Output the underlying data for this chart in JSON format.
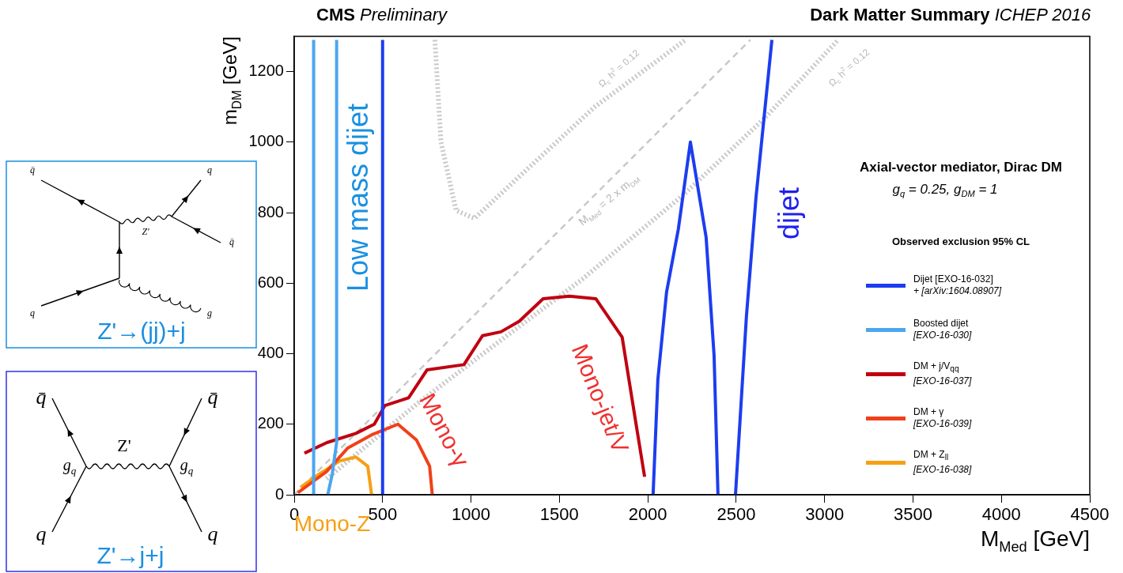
{
  "chart_data": {
    "type": "line",
    "title": "CMS Preliminary",
    "subtitle": "Dark Matter Summary ICHEP 2016",
    "xlabel": "M$_{Med}$ [GeV]",
    "ylabel": "m$_{DM}$ [GeV]",
    "legend_title": "Observed exclusion 95% CL",
    "legend": "right",
    "grid": false,
    "xlim": [
      0,
      4500
    ],
    "ylim": [
      0,
      1300
    ],
    "xticks": [
      0,
      500,
      1000,
      1500,
      2000,
      2500,
      3000,
      3500,
      4000,
      4500
    ],
    "yticks": [
      0,
      200,
      400,
      600,
      800,
      1000,
      1200
    ],
    "series": [
      {
        "name": "Dijet [EXO-16-032]\n+ [arXiv:1604.08907]",
        "color": "#1c3df0",
        "x": [
          500,
          500,
          null,
          2030,
          2057,
          2106,
          2173,
          2241,
          2330,
          2375,
          2397,
          null,
          2496,
          2558,
          2612,
          2702
        ],
        "values": [
          0,
          1290,
          null,
          0,
          327,
          574,
          754,
          1000,
          730,
          395,
          0,
          null,
          0,
          507,
          843,
          1290
        ]
      },
      {
        "name": "Boosted dijet\n[EXO-16-030]",
        "color": "#4ba6f0",
        "x": [
          110,
          110,
          null,
          190,
          215,
          240,
          240
        ],
        "values": [
          0,
          1290,
          null,
          0,
          58,
          148,
          1290
        ]
      },
      {
        "name": "DM + j/V$_{qq}$\n[EXO-16-037]",
        "color": "#c00010",
        "x": [
          58,
          185,
          349,
          453,
          513,
          647,
          751,
          960,
          1065,
          1169,
          1273,
          1408,
          1557,
          1706,
          1855,
          1929,
          1982
        ],
        "values": [
          118,
          148,
          174,
          200,
          253,
          275,
          354,
          369,
          451,
          462,
          492,
          556,
          563,
          556,
          447,
          215,
          51
        ]
      },
      {
        "name": "DM + γ\n[EXO-16-039]",
        "color": "#f0401a",
        "x": [
          21,
          81,
          183,
          304,
          438,
          587,
          692,
          766,
          781
        ],
        "values": [
          6,
          28,
          66,
          133,
          170,
          200,
          155,
          81,
          0
        ]
      },
      {
        "name": "DM + Z$_{ll}$\n[EXO-16-038]",
        "color": "#f5a014",
        "x": [
          36,
          139,
          259,
          349,
          416,
          438
        ],
        "values": [
          21,
          58,
          96,
          107,
          81,
          0
        ]
      },
      {
        "color": "#c8c8c8",
        "line_style": "dotted",
        "x": [
          796,
          830,
          916,
          1020,
          1300,
          1700,
          2213
        ],
        "values": [
          1290,
          1000,
          806,
          784,
          915,
          1100,
          1290
        ]
      },
      {
        "color": "#c8c8c8",
        "line_style": "dotted",
        "x": [
          183,
          700,
          1200,
          1631,
          2200,
          2661,
          3077
        ],
        "values": [
          45,
          260,
          450,
          612,
          850,
          1068,
          1290
        ]
      },
      {
        "color": "#c8c8c8",
        "line_style": "dashed",
        "x": [
          0,
          2580
        ],
        "values": [
          0,
          1290
        ]
      }
    ],
    "annotations": [
      "Axial-vector mediator, Dirac DM",
      "g$_{q}$ = 0.25, g$_{DM}$ = 1",
      "Low mass dijet",
      "dijet",
      "Mono-jet/V",
      "Mono-γ",
      "Mono-Z",
      "Ω$_{c}$ h$^{2}$ = 0.12",
      "Ω$_{c}$ h$^{2}$ = 0.12",
      "M$_{Med}$ = 2 x m$_{DM}$",
      "Z'→(jj)+j",
      "Z'→j+j",
      "q̄",
      "q",
      "Z'",
      "q̄",
      "q",
      "g",
      "q̄",
      "q̄",
      "Z'",
      "g$_{q}$",
      "g$_{q}$",
      "q",
      "q"
    ]
  }
}
